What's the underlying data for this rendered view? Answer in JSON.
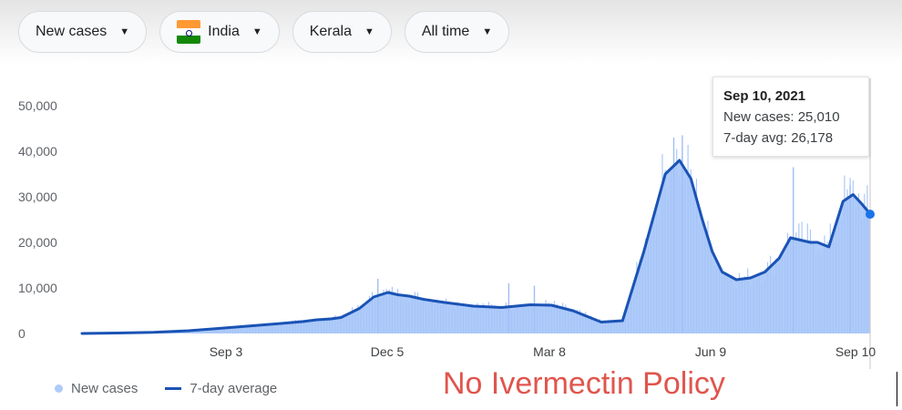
{
  "filters": [
    {
      "label": "New cases"
    },
    {
      "label": "India",
      "icon": "india-flag-icon"
    },
    {
      "label": "Kerala"
    },
    {
      "label": "All time"
    }
  ],
  "tooltip": {
    "date": "Sep 10, 2021",
    "new_cases": "New cases: 25,010",
    "avg": "7-day avg: 26,178"
  },
  "legend": {
    "bars_label": "New cases",
    "line_label": "7-day average"
  },
  "annotation": "No Ivermectin Policy",
  "colors": {
    "bars": "#aecbfa",
    "line": "#1a53b5",
    "annotation": "#e0554d"
  },
  "chart_data": {
    "type": "bar",
    "title": "",
    "xlabel": "",
    "ylabel": "",
    "ylim": [
      0,
      50000
    ],
    "y_ticks": [
      50000,
      40000,
      30000,
      20000,
      10000,
      0
    ],
    "y_tick_labels": [
      "50,000",
      "40,000",
      "30,000",
      "20,000",
      "10,000",
      "0"
    ],
    "x_tick_labels": [
      "Sep 3",
      "Dec 5",
      "Mar 8",
      "Jun 9",
      "Sep 10"
    ],
    "x_tick_days": [
      182,
      275,
      368,
      461,
      554
    ],
    "x_start": "2020-03-05",
    "x_end": "2021-09-10",
    "grid": false,
    "legend_position": "bottom-left",
    "series": [
      {
        "name": "7-day average",
        "type": "line",
        "x": [
          0,
          25,
          50,
          75,
          100,
          120,
          140,
          155,
          165,
          175,
          182,
          195,
          205,
          215,
          222,
          230,
          240,
          255,
          275,
          295,
          315,
          330,
          345,
          365,
          380,
          395,
          410,
          420,
          428,
          436,
          443,
          450,
          460,
          470,
          480,
          490,
          498,
          505,
          512,
          517,
          525,
          535,
          542,
          548,
          552,
          554
        ],
        "y": [
          0,
          100,
          250,
          600,
          1200,
          1700,
          2200,
          2600,
          3000,
          3200,
          3500,
          5500,
          8000,
          9000,
          8500,
          8200,
          7500,
          6800,
          6000,
          5700,
          6300,
          6200,
          5000,
          2500,
          2800,
          18000,
          35000,
          38000,
          34000,
          25000,
          18000,
          13500,
          11800,
          12200,
          13500,
          16500,
          21000,
          20500,
          20000,
          20000,
          19000,
          29000,
          30500,
          28500,
          27000,
          26178
        ]
      },
      {
        "name": "New cases",
        "type": "bar",
        "x": [
          0,
          25,
          50,
          75,
          100,
          120,
          140,
          155,
          165,
          175,
          182,
          195,
          205,
          215,
          222,
          230,
          240,
          255,
          275,
          295,
          315,
          330,
          345,
          365,
          380,
          395,
          410,
          420,
          428,
          436,
          443,
          450,
          460,
          470,
          480,
          490,
          498,
          505,
          512,
          517,
          525,
          535,
          542,
          548,
          552,
          554
        ],
        "y": [
          0,
          100,
          250,
          600,
          1200,
          1700,
          2200,
          2600,
          3000,
          3200,
          3500,
          5500,
          8000,
          9000,
          8500,
          8200,
          7500,
          6800,
          6000,
          5700,
          6300,
          6200,
          5000,
          2500,
          2800,
          18000,
          35000,
          38000,
          34000,
          25000,
          18000,
          13500,
          11800,
          12200,
          13500,
          16500,
          21000,
          20500,
          20000,
          20000,
          19000,
          29000,
          30500,
          28500,
          27000,
          25010
        ],
        "peaks": [
          {
            "x": 208,
            "y": 12000
          },
          {
            "x": 300,
            "y": 11000
          },
          {
            "x": 318,
            "y": 10500
          },
          {
            "x": 416,
            "y": 43000
          },
          {
            "x": 422,
            "y": 43500
          },
          {
            "x": 500,
            "y": 36500
          },
          {
            "x": 540,
            "y": 32500
          }
        ]
      }
    ]
  }
}
